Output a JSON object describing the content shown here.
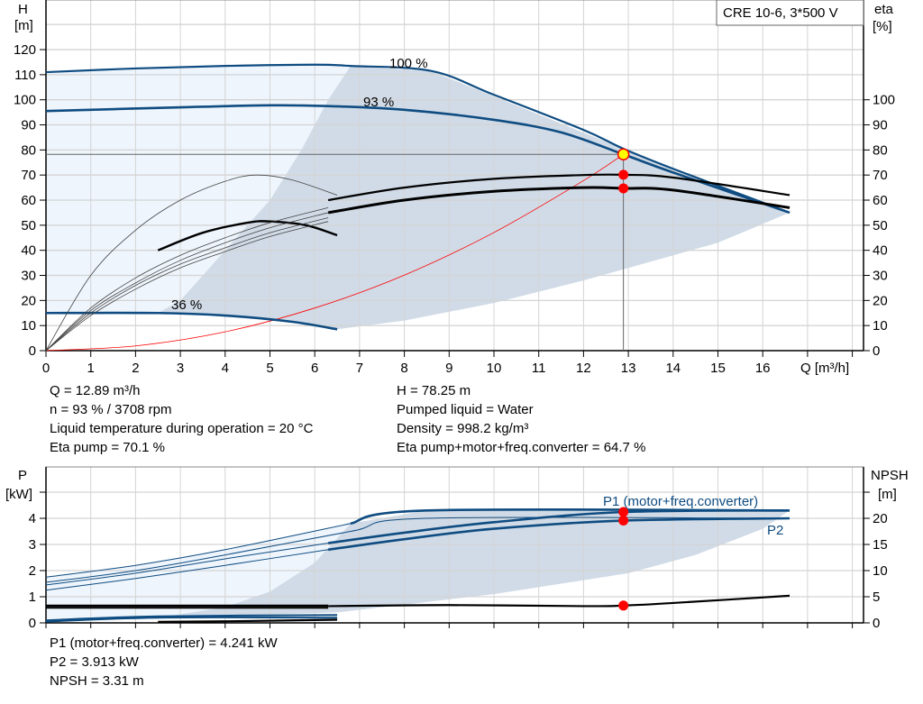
{
  "chart_data": [
    {
      "type": "line",
      "title": "CRE 10-6, 3*500 V",
      "xlabel": "Q [m³/h]",
      "ylabel": "H\n[m]",
      "ylabel_left_lines": [
        "H",
        "[m]"
      ],
      "ylabel_right_lines": [
        "eta",
        "[%]"
      ],
      "xlim": [
        0,
        18.2
      ],
      "ylim": [
        0,
        140
      ],
      "xticks": [
        0,
        1,
        2,
        3,
        4,
        5,
        6,
        7,
        8,
        9,
        10,
        11,
        12,
        13,
        14,
        15,
        16
      ],
      "yticks_left": [
        0,
        10,
        20,
        30,
        40,
        50,
        60,
        70,
        80,
        90,
        100,
        110,
        120
      ],
      "yticks_right": [
        0,
        10,
        20,
        30,
        40,
        50,
        60,
        70,
        80,
        90,
        100
      ],
      "grid": true,
      "colors": {
        "curve": "#0f4c81",
        "region_dark": "#d0dbe7",
        "region_light": "#eef5fc",
        "system": "#ff0000",
        "point": "#ff0000",
        "duty_point": "#ffff00"
      },
      "curve_labels": [
        "100 %",
        "93 %",
        "36 %"
      ],
      "series": [
        {
          "name": "100 %",
          "kind": "H",
          "points": [
            [
              0,
              111
            ],
            [
              2,
              112.5
            ],
            [
              4,
              113.5
            ],
            [
              6,
              114
            ],
            [
              6.8,
              113.5
            ],
            [
              8.6,
              111.5
            ],
            [
              10,
              102
            ],
            [
              12,
              88
            ],
            [
              12.89,
              80.5
            ],
            [
              14,
              72.5
            ],
            [
              16.6,
              55
            ]
          ]
        },
        {
          "name": "93 %",
          "kind": "H",
          "points": [
            [
              0,
              95.5
            ],
            [
              3,
              97
            ],
            [
              5,
              97.8
            ],
            [
              6.3,
              97.5
            ],
            [
              8,
              96
            ],
            [
              10,
              92
            ],
            [
              11.5,
              87
            ],
            [
              12.89,
              78.25
            ],
            [
              14,
              71
            ],
            [
              16.6,
              55
            ]
          ]
        },
        {
          "name": "36 %",
          "kind": "H",
          "points": [
            [
              0,
              15
            ],
            [
              2.5,
              15
            ],
            [
              4,
              14
            ],
            [
              5.5,
              11.5
            ],
            [
              6.5,
              8.5
            ]
          ]
        },
        {
          "kind": "eta_pump",
          "points": [
            [
              6.3,
              60
            ],
            [
              8,
              65
            ],
            [
              10,
              68.5
            ],
            [
              12,
              70
            ],
            [
              12.89,
              70.1
            ],
            [
              14,
              69
            ],
            [
              16.6,
              62
            ]
          ]
        },
        {
          "kind": "eta_total",
          "points": [
            [
              6.3,
              55
            ],
            [
              8,
              60
            ],
            [
              10,
              63.5
            ],
            [
              12,
              65
            ],
            [
              12.89,
              64.7
            ],
            [
              14,
              64
            ],
            [
              16.6,
              57
            ]
          ]
        },
        {
          "kind": "eta_36",
          "points": [
            [
              2.5,
              40
            ],
            [
              3.5,
              47
            ],
            [
              4.5,
              51
            ],
            [
              5,
              51.5
            ],
            [
              5.8,
              50
            ],
            [
              6.5,
              46
            ]
          ]
        },
        {
          "kind": "eta_min",
          "points": [
            [
              0,
              0
            ],
            [
              1,
              30
            ],
            [
              2,
              48
            ],
            [
              3,
              60
            ],
            [
              4,
              67.5
            ],
            [
              4.7,
              70
            ],
            [
              5.5,
              68
            ],
            [
              6.5,
              62
            ]
          ]
        },
        {
          "kind": "eta_family",
          "points": [
            [
              0,
              0
            ],
            [
              1,
              17
            ],
            [
              2,
              29
            ],
            [
              3,
              38
            ],
            [
              4,
              45
            ],
            [
              5,
              51
            ],
            [
              6.3,
              57
            ]
          ]
        },
        {
          "kind": "eta_family",
          "points": [
            [
              0,
              0
            ],
            [
              1,
              16
            ],
            [
              2,
              27
            ],
            [
              3,
              36
            ],
            [
              4,
              43
            ],
            [
              5,
              49
            ],
            [
              6.3,
              55
            ]
          ]
        },
        {
          "kind": "eta_family",
          "points": [
            [
              0,
              0
            ],
            [
              1,
              15
            ],
            [
              2,
              26
            ],
            [
              3,
              34.5
            ],
            [
              4,
              41
            ],
            [
              5,
              47
            ],
            [
              6.3,
              53
            ]
          ]
        },
        {
          "kind": "eta_family",
          "points": [
            [
              0,
              0
            ],
            [
              1,
              14
            ],
            [
              2,
              24.5
            ],
            [
              3,
              33
            ],
            [
              4,
              39.5
            ],
            [
              5,
              45.5
            ],
            [
              6.3,
              51.5
            ]
          ]
        }
      ],
      "system_curve": {
        "points": [
          [
            0,
            0
          ],
          [
            2,
            1.9
          ],
          [
            4,
            7.5
          ],
          [
            6,
            17
          ],
          [
            8,
            30.1
          ],
          [
            10,
            47.1
          ],
          [
            12,
            67.8
          ],
          [
            12.89,
            78.25
          ]
        ]
      },
      "operating_point": {
        "Q": 12.89,
        "H": 78.25,
        "eta_pump": 70.1,
        "eta_total": 64.7
      },
      "region_dark": [
        [
          2.5,
          15
        ],
        [
          3,
          20
        ],
        [
          4,
          40
        ],
        [
          5,
          60
        ],
        [
          5.7,
          80
        ],
        [
          6.3,
          100
        ],
        [
          6.8,
          113.5
        ],
        [
          8.6,
          111.5
        ],
        [
          12.89,
          80.5
        ],
        [
          16.6,
          55
        ],
        [
          15,
          43
        ],
        [
          13,
          33
        ],
        [
          12,
          28
        ],
        [
          10,
          19
        ],
        [
          8,
          12
        ],
        [
          6.5,
          8.5
        ],
        [
          5.5,
          11.5
        ],
        [
          4,
          14
        ]
      ],
      "region_light": [
        [
          0,
          15
        ],
        [
          0,
          111
        ],
        [
          2,
          112.5
        ],
        [
          4,
          113.5
        ],
        [
          6,
          114
        ],
        [
          6.8,
          113.5
        ],
        [
          6.3,
          100
        ],
        [
          5.7,
          80
        ],
        [
          5,
          60
        ],
        [
          4,
          40
        ],
        [
          3,
          20
        ],
        [
          2.5,
          15
        ]
      ]
    },
    {
      "type": "line",
      "ylabel_left_lines": [
        "P",
        "[kW]"
      ],
      "ylabel_right_lines": [
        "NPSH",
        "[m]"
      ],
      "xlim": [
        0,
        18.2
      ],
      "ylim": [
        0,
        6
      ],
      "ylim_right": [
        0,
        30
      ],
      "yticks_left": [
        0,
        1,
        2,
        3,
        4
      ],
      "yticks_right": [
        0,
        5,
        10,
        15,
        20
      ],
      "grid": true,
      "curve_labels": [
        "P1 (motor+freq.converter)",
        "P2"
      ],
      "series": [
        {
          "name": "P1 (motor+freq.converter)",
          "kind": "P",
          "points": [
            [
              6.8,
              3.8
            ],
            [
              8.5,
              4.3
            ],
            [
              16.6,
              4.3
            ]
          ]
        },
        {
          "kind": "P",
          "points": [
            [
              6.3,
              3.05
            ],
            [
              8,
              3.45
            ],
            [
              10,
              3.85
            ],
            [
              12.89,
              4.241
            ],
            [
              16.6,
              4.3
            ]
          ]
        },
        {
          "name": "P2",
          "kind": "P",
          "points": [
            [
              6.3,
              2.8
            ],
            [
              8,
              3.2
            ],
            [
              10,
              3.6
            ],
            [
              12.89,
              3.913
            ],
            [
              16.6,
              4.0
            ]
          ]
        },
        {
          "kind": "P_thin",
          "points": [
            [
              0,
              1.75
            ],
            [
              2,
              2.2
            ],
            [
              4,
              2.8
            ],
            [
              6.8,
              3.8
            ]
          ]
        },
        {
          "kind": "P_thin",
          "points": [
            [
              0,
              1.55
            ],
            [
              2,
              2.0
            ],
            [
              4,
              2.6
            ],
            [
              6.8,
              3.5
            ],
            [
              8.5,
              4.0
            ],
            [
              16.6,
              4.0
            ]
          ]
        },
        {
          "kind": "P_thin",
          "points": [
            [
              0,
              1.45
            ],
            [
              2,
              1.9
            ],
            [
              4,
              2.45
            ],
            [
              6.3,
              3.05
            ]
          ]
        },
        {
          "kind": "P_thin",
          "points": [
            [
              0,
              1.25
            ],
            [
              2,
              1.7
            ],
            [
              4,
              2.2
            ],
            [
              6.3,
              2.8
            ]
          ]
        },
        {
          "kind": "P_low",
          "points": [
            [
              0,
              0.1
            ],
            [
              2.5,
              0.25
            ],
            [
              6.5,
              0.3
            ]
          ]
        },
        {
          "kind": "P_low",
          "points": [
            [
              0,
              0.05
            ],
            [
              2.5,
              0.2
            ],
            [
              6.5,
              0.2
            ]
          ]
        },
        {
          "kind": "NPSH",
          "points": [
            [
              0,
              3.3
            ],
            [
              6.3,
              3.3
            ]
          ]
        },
        {
          "kind": "NPSH",
          "points": [
            [
              0,
              2.9
            ],
            [
              6.3,
              2.9
            ]
          ]
        },
        {
          "kind": "NPSH",
          "points": [
            [
              6.3,
              3.2
            ],
            [
              9,
              3.4
            ],
            [
              12,
              3.2
            ],
            [
              12.89,
              3.31
            ],
            [
              14,
              3.8
            ],
            [
              16.6,
              5.2
            ]
          ]
        },
        {
          "kind": "NPSH",
          "points": [
            [
              2.5,
              0.2
            ],
            [
              4,
              0.3
            ],
            [
              6.5,
              0.6
            ]
          ]
        }
      ],
      "operating_point": {
        "Q": 12.89,
        "P1": 4.241,
        "P2": 3.913,
        "NPSH": 3.31
      },
      "region_dark": [
        [
          2.5,
          0.2
        ],
        [
          4,
          0.6
        ],
        [
          5,
          1.2
        ],
        [
          6,
          2.3
        ],
        [
          6.8,
          3.8
        ],
        [
          8.5,
          4.3
        ],
        [
          16.6,
          4.3
        ],
        [
          16,
          3.6
        ],
        [
          14.5,
          2.6
        ],
        [
          13,
          1.9
        ],
        [
          10,
          1.1
        ],
        [
          8,
          0.7
        ],
        [
          6.5,
          0.4
        ]
      ],
      "region_light": [
        [
          0,
          0.05
        ],
        [
          0,
          1.75
        ],
        [
          2,
          2.2
        ],
        [
          4,
          2.8
        ],
        [
          6.8,
          3.8
        ],
        [
          6,
          2.3
        ],
        [
          5,
          1.2
        ],
        [
          4,
          0.6
        ],
        [
          2.5,
          0.2
        ]
      ]
    }
  ],
  "results": {
    "left": [
      "Q = 12.89 m³/h",
      "n = 93 % / 3708 rpm",
      "Liquid temperature during operation = 20 °C",
      "Eta pump = 70.1 %"
    ],
    "right": [
      "H = 78.25 m",
      "Pumped liquid = Water",
      "Density = 998.2 kg/m³",
      "Eta pump+motor+freq.converter = 64.7 %"
    ],
    "power": [
      "P1 (motor+freq.converter) = 4.241 kW",
      "P2 = 3.913 kW",
      "NPSH = 3.31 m"
    ]
  }
}
